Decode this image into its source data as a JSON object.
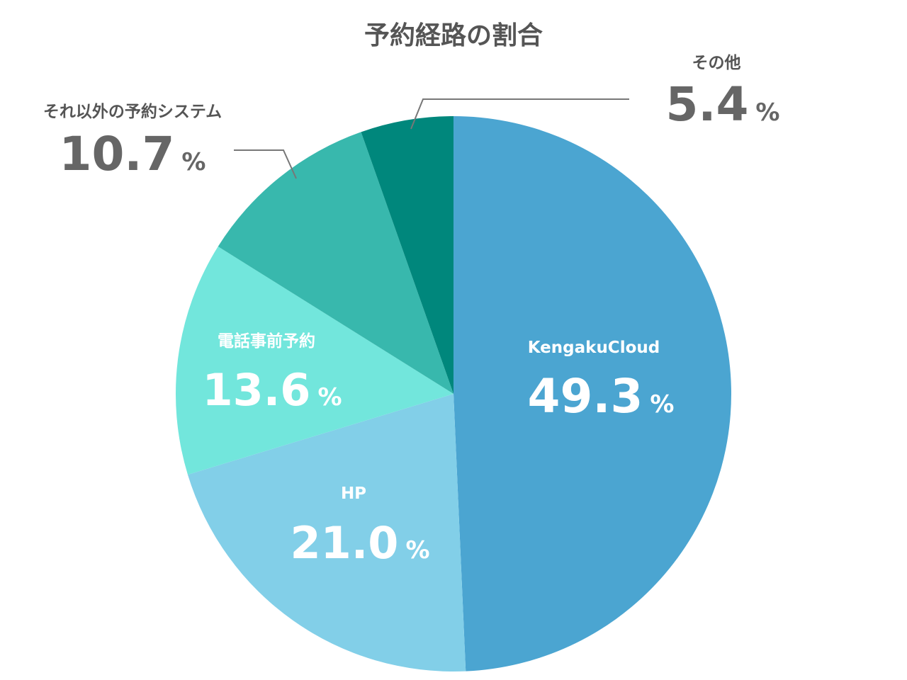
{
  "chart_data": {
    "type": "pie",
    "title": "予約経路の割合",
    "start": "top",
    "direction": "clockwise",
    "slices": [
      {
        "label": "KengakuCloud",
        "value": 49.3,
        "display": "49.3",
        "unit": "%",
        "color": "#4BA5D1"
      },
      {
        "label": "HP",
        "value": 21.0,
        "display": "21.0",
        "unit": "%",
        "color": "#82CFE8"
      },
      {
        "label": "電話事前予約",
        "value": 13.6,
        "display": "13.6",
        "unit": "%",
        "color": "#72E6DC"
      },
      {
        "label": "それ以外の予約システム",
        "value": 10.7,
        "display": "10.7",
        "unit": "%",
        "color": "#38B8AD"
      },
      {
        "label": "その他",
        "value": 5.4,
        "display": "5.4",
        "unit": "%",
        "color": "#00877C"
      }
    ]
  }
}
